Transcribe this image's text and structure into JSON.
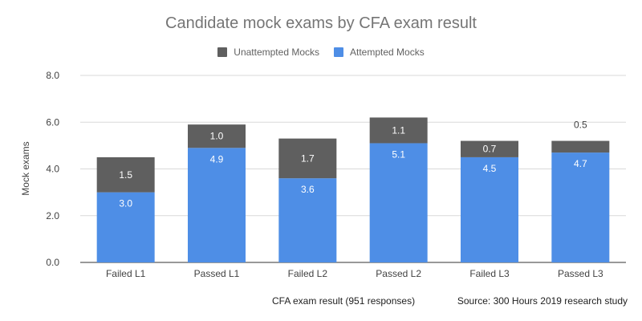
{
  "chart_data": {
    "type": "bar",
    "title": "Candidate mock exams by CFA exam result",
    "xlabel": "CFA exam result (951 responses)",
    "ylabel": "Mock exams",
    "source": "Source: 300 Hours 2019 research study",
    "categories": [
      "Failed L1",
      "Passed L1",
      "Failed L2",
      "Passed L2",
      "Failed L3",
      "Passed L3"
    ],
    "series": [
      {
        "name": "Attempted Mocks",
        "values": [
          3.0,
          4.9,
          3.6,
          5.1,
          4.5,
          4.7
        ],
        "labels": [
          "3.0",
          "4.9",
          "3.6",
          "5.1",
          "4.5",
          "4.7"
        ],
        "color": "#4e8ee6"
      },
      {
        "name": "Unattempted Mocks",
        "values": [
          1.5,
          1.0,
          1.7,
          1.1,
          0.7,
          0.5
        ],
        "labels": [
          "1.5",
          "1.0",
          "1.7",
          "1.1",
          "0.7",
          "0.5"
        ],
        "color": "#5f5f5f"
      }
    ],
    "legend_order": [
      "Unattempted Mocks",
      "Attempted Mocks"
    ],
    "stacked": true,
    "ylim": [
      0,
      8
    ],
    "yticks": [
      "0.0",
      "2.0",
      "4.0",
      "6.0",
      "8.0"
    ],
    "grid": true,
    "legend_position": "top"
  }
}
